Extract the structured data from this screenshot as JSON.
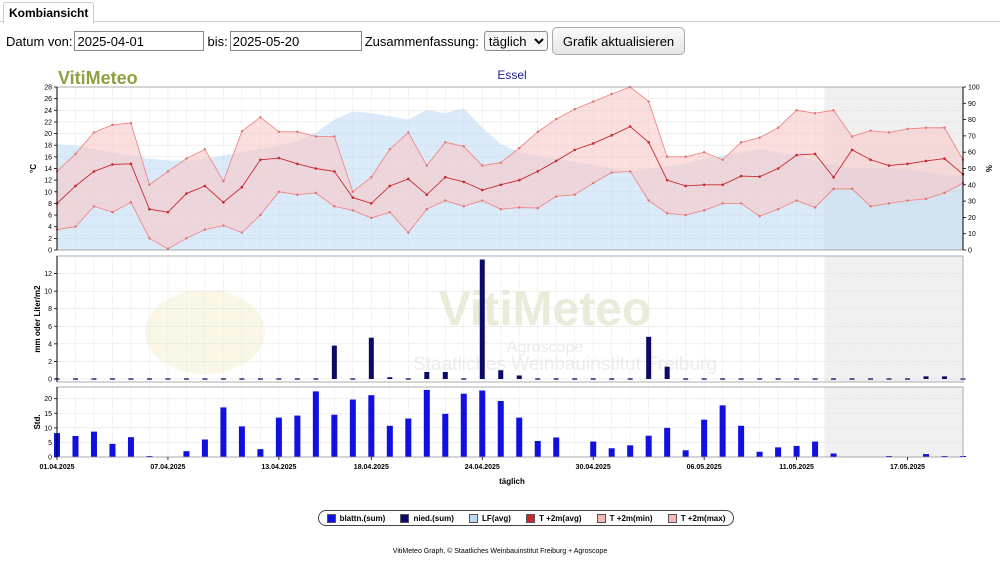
{
  "tab": {
    "label": "Kombiansicht"
  },
  "form": {
    "from_label": "Datum von:",
    "from_value": "2025-04-01",
    "to_label": "bis:",
    "to_value": "2025-05-20",
    "summary_label": "Zusammenfassung:",
    "summary_value": "täglich",
    "button_label": "Grafik aktualisieren"
  },
  "chart_data": {
    "type": "combined",
    "logo": "VitiMeteo",
    "title": "Essel",
    "watermark": {
      "line1": "VitiMeteo",
      "line2": "Agroscope",
      "line3": "Staatliches Weinbauinstitut Freiburg"
    },
    "x": [
      "01.04.2025",
      "02.04.2025",
      "03.04.2025",
      "04.04.2025",
      "05.04.2025",
      "06.04.2025",
      "07.04.2025",
      "08.04.2025",
      "09.04.2025",
      "10.04.2025",
      "11.04.2025",
      "12.04.2025",
      "13.04.2025",
      "14.04.2025",
      "15.04.2025",
      "16.04.2025",
      "17.04.2025",
      "18.04.2025",
      "19.04.2025",
      "20.04.2025",
      "21.04.2025",
      "22.04.2025",
      "23.04.2025",
      "24.04.2025",
      "25.04.2025",
      "26.04.2025",
      "27.04.2025",
      "28.04.2025",
      "29.04.2025",
      "30.04.2025",
      "01.05.2025",
      "02.05.2025",
      "03.05.2025",
      "04.05.2025",
      "05.05.2025",
      "06.05.2025",
      "07.05.2025",
      "08.05.2025",
      "09.05.2025",
      "10.05.2025",
      "11.05.2025",
      "12.05.2025",
      "13.05.2025",
      "14.05.2025",
      "15.05.2025",
      "16.05.2025",
      "17.05.2025",
      "18.05.2025",
      "19.05.2025",
      "20.05.2025"
    ],
    "x_ticks": [
      "01.04.2025",
      "07.04.2025",
      "13.04.2025",
      "18.04.2025",
      "24.04.2025",
      "30.04.2025",
      "06.05.2025",
      "11.05.2025",
      "17.05.2025"
    ],
    "xlabel": "täglich",
    "forecast_from": "13.05.2025",
    "panels": [
      {
        "name": "temperature",
        "ylabel_left": "°C",
        "ylim_left": [
          0,
          28
        ],
        "yticks_left": [
          "0",
          "2",
          "4",
          "6",
          "8",
          "10",
          "12",
          "14",
          "16",
          "18",
          "20",
          "22",
          "24",
          "26",
          "28"
        ],
        "ylabel_right": "%",
        "ylim_right": [
          0,
          100
        ],
        "yticks_right": [
          "0",
          "10",
          "20",
          "30",
          "40",
          "50",
          "60",
          "70",
          "80",
          "90",
          "100"
        ],
        "series": [
          {
            "name": "LF(avg)",
            "axis": "right",
            "color": "#bcd8f4",
            "values": [
              65,
              64,
              62,
              60,
              58,
              56,
              55,
              55,
              56,
              58,
              60,
              62,
              64,
              67,
              72,
              80,
              85,
              84,
              82,
              80,
              86,
              84,
              87,
              75,
              65,
              60,
              58,
              56,
              54,
              52,
              50,
              48,
              50,
              51,
              53,
              56,
              58,
              60,
              62,
              60,
              58,
              55,
              52,
              50,
              50,
              50,
              49,
              48,
              46,
              45
            ]
          },
          {
            "name": "T +2m(max)",
            "color": "#f7b5b5",
            "values": [
              13.5,
              16.5,
              20.2,
              21.5,
              21.8,
              11.2,
              13.5,
              15.7,
              17.3,
              11.8,
              20.4,
              22.8,
              20.3,
              20.3,
              19.5,
              19.5,
              10.0,
              12.5,
              17.3,
              20.2,
              14.5,
              18.5,
              17.8,
              14.5,
              15.0,
              17.5,
              20.3,
              22.5,
              24.2,
              25.5,
              26.8,
              28.0,
              25.5,
              16.0,
              16.0,
              16.8,
              15.5,
              18.5,
              19.3,
              21.0,
              24.0,
              23.5,
              24.0,
              19.5,
              20.5,
              20.2,
              20.8,
              21.0,
              21.0,
              15.5
            ]
          },
          {
            "name": "T +2m(avg)",
            "color": "#c8282d",
            "values": [
              8.0,
              11.0,
              13.5,
              14.7,
              14.8,
              7.0,
              6.5,
              9.7,
              11.0,
              8.2,
              10.8,
              15.5,
              15.8,
              14.8,
              14.0,
              13.5,
              9.0,
              8.0,
              11.0,
              12.2,
              9.5,
              12.5,
              11.7,
              10.3,
              11.2,
              12.0,
              13.5,
              15.3,
              17.2,
              18.3,
              19.7,
              21.2,
              18.5,
              12.0,
              11.0,
              11.2,
              11.2,
              12.7,
              12.6,
              14.0,
              16.3,
              16.5,
              12.5,
              17.2,
              15.5,
              14.5,
              14.8,
              15.3,
              15.7,
              13.0
            ]
          },
          {
            "name": "T +2m(min)",
            "color": "#f7b5b5",
            "values": [
              3.5,
              4.0,
              7.5,
              6.5,
              8.2,
              2.0,
              0.2,
              2.0,
              3.5,
              4.2,
              3.0,
              6.0,
              10.0,
              9.5,
              9.8,
              7.5,
              6.8,
              5.5,
              6.5,
              3.0,
              7.0,
              8.5,
              7.5,
              8.5,
              7.0,
              7.3,
              7.2,
              9.2,
              9.5,
              11.5,
              13.3,
              13.5,
              8.5,
              6.3,
              6.0,
              6.8,
              8.0,
              8.0,
              5.8,
              7.0,
              8.5,
              7.3,
              10.5,
              10.5,
              7.5,
              8.0,
              8.5,
              8.8,
              9.8,
              11.5
            ]
          }
        ]
      },
      {
        "name": "precipitation",
        "ylabel_left": "mm oder Liter/m2",
        "ylim_left": [
          0,
          14
        ],
        "yticks_left": [
          "0",
          "2",
          "4",
          "6",
          "8",
          "10",
          "12"
        ],
        "series": [
          {
            "name": "nied.(sum)",
            "color": "#0a0a6b",
            "values": [
              0,
              0,
              0,
              0,
              0,
              0,
              0,
              0,
              0,
              0,
              0,
              0,
              0,
              0,
              0,
              3.8,
              0,
              4.7,
              0.2,
              0,
              0.8,
              0.8,
              0,
              13.6,
              1.0,
              0.4,
              0,
              0,
              0,
              0,
              0,
              0,
              4.8,
              1.4,
              0,
              0,
              0,
              0,
              0,
              0,
              0,
              0,
              0,
              0,
              0,
              0,
              0,
              0.3,
              0.3,
              0
            ]
          }
        ]
      },
      {
        "name": "leaf_wetness",
        "ylabel_left": "Std.",
        "ylim_left": [
          0,
          24
        ],
        "yticks_left": [
          "0",
          "5",
          "10",
          "15",
          "20"
        ],
        "series": [
          {
            "name": "blattn.(sum)",
            "color": "#1010e0",
            "values": [
              8.2,
              7.2,
              8.7,
              4.5,
              6.8,
              0.3,
              0,
              2.0,
              6.0,
              17.0,
              10.5,
              2.7,
              13.5,
              14.2,
              22.5,
              14.5,
              19.7,
              21.2,
              10.7,
              13.2,
              23.0,
              14.8,
              21.7,
              22.8,
              19.2,
              13.5,
              5.5,
              6.7,
              0,
              5.3,
              3.0,
              4.0,
              7.3,
              10.0,
              2.3,
              12.8,
              17.7,
              10.7,
              1.8,
              3.3,
              3.8,
              5.3,
              1.2,
              0,
              0,
              0.3,
              0,
              1.0,
              0.3,
              0.3
            ]
          }
        ]
      }
    ],
    "legend": [
      {
        "name": "blattn.(sum)",
        "color": "#1010e0"
      },
      {
        "name": "nied.(sum)",
        "color": "#0a0a6b"
      },
      {
        "name": "LF(avg)",
        "color": "#bcd8f4"
      },
      {
        "name": "T +2m(avg)",
        "color": "#c8282d"
      },
      {
        "name": "T +2m(min)",
        "color": "#f7b5b5"
      },
      {
        "name": "T +2m(max)",
        "color": "#f7b5b5"
      }
    ],
    "legend_placement": "bottom"
  },
  "footer": {
    "text": "VitiMeteo Graph, ©  Staatliches Weinbauinstitut Freiburg + Agroscope"
  }
}
